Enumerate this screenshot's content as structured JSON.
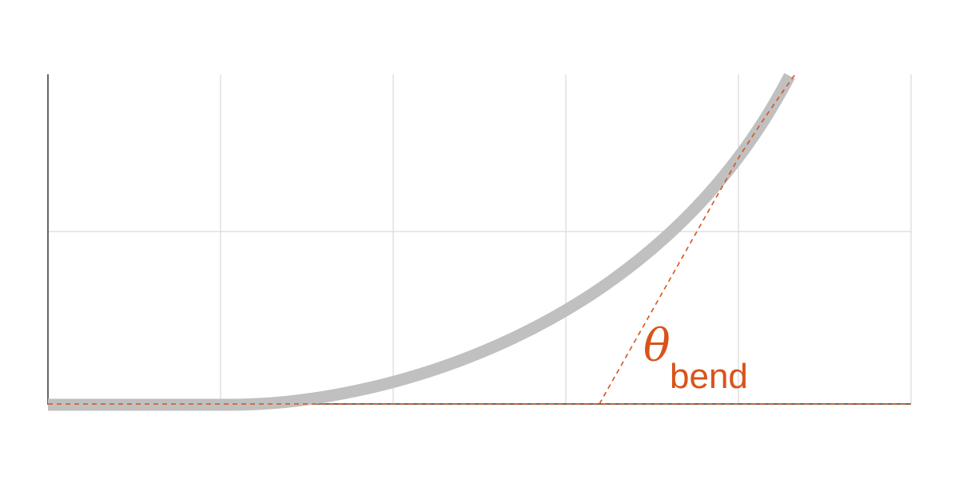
{
  "annotation": {
    "symbol": "θ",
    "subscript": "bend"
  },
  "colors": {
    "background": "#ffffff",
    "grid": "#d9d9d9",
    "axis": "#333333",
    "curve": "#c0c0c0",
    "accent": "#d95319"
  }
}
